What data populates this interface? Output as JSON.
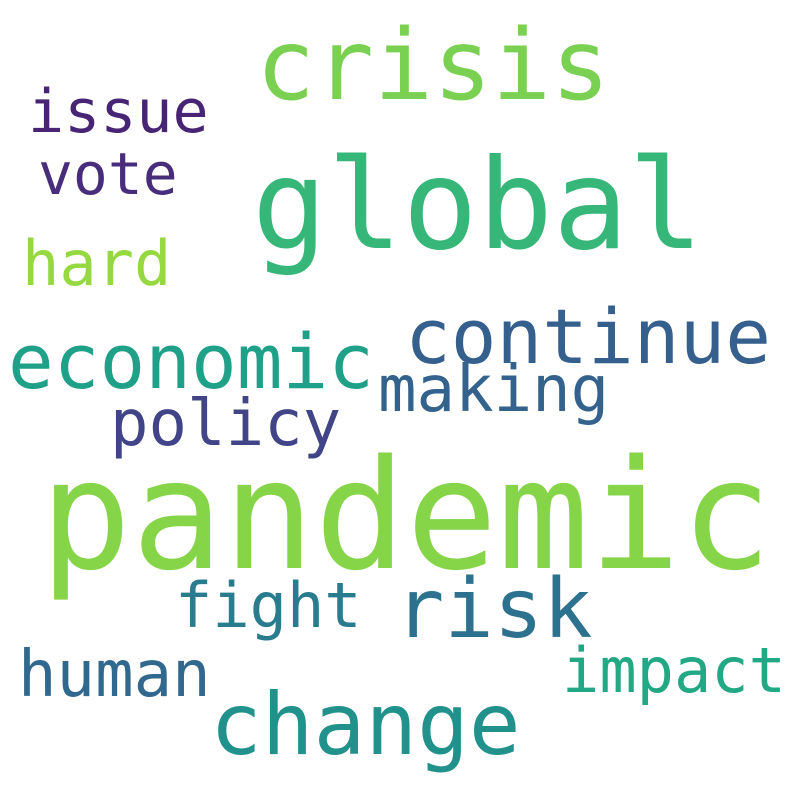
{
  "words": [
    {
      "key": "pandemic",
      "text": "pandemic",
      "color": "#86d549"
    },
    {
      "key": "global",
      "text": "global",
      "color": "#36b779"
    },
    {
      "key": "crisis",
      "text": "crisis",
      "color": "#7ad151"
    },
    {
      "key": "economic",
      "text": "economic",
      "color": "#1fa088"
    },
    {
      "key": "continue",
      "text": "continue",
      "color": "#355f8d"
    },
    {
      "key": "change",
      "text": "change",
      "color": "#21918c"
    },
    {
      "key": "risk",
      "text": "risk",
      "color": "#2c718e"
    },
    {
      "key": "making",
      "text": "making",
      "color": "#33638d"
    },
    {
      "key": "policy",
      "text": "policy",
      "color": "#414487"
    },
    {
      "key": "fight",
      "text": "fight",
      "color": "#287c8e"
    },
    {
      "key": "impact",
      "text": "impact",
      "color": "#22a884"
    },
    {
      "key": "human",
      "text": "human",
      "color": "#31688e"
    },
    {
      "key": "hard",
      "text": "hard",
      "color": "#95d840"
    },
    {
      "key": "issue",
      "text": "issue",
      "color": "#482475"
    },
    {
      "key": "vote",
      "text": "vote",
      "color": "#472d7b"
    }
  ]
}
